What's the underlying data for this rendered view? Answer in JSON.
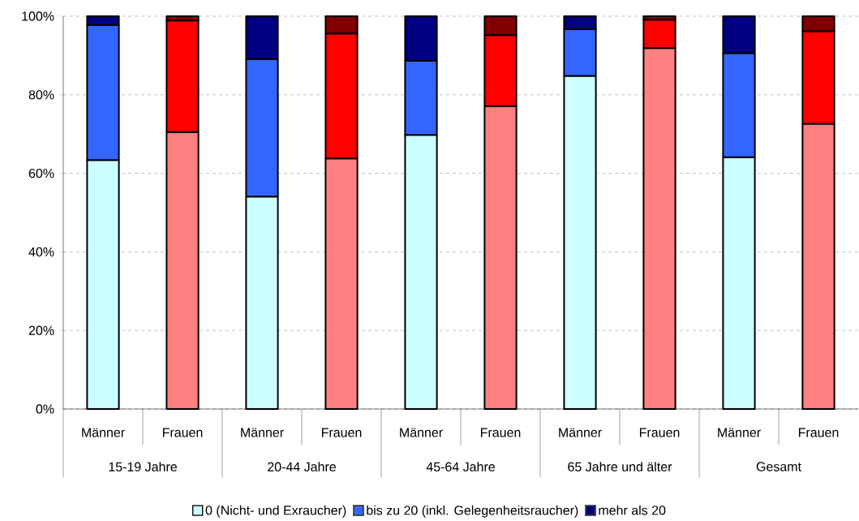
{
  "chart_data": {
    "type": "bar",
    "stacked": true,
    "categories": [
      "Männer",
      "Frauen",
      "Männer",
      "Frauen",
      "Männer",
      "Frauen",
      "Männer",
      "Frauen",
      "Männer",
      "Frauen"
    ],
    "annotations": [
      "15-19 Jahre",
      "20-44 Jahre",
      "45-64 Jahre",
      "65 Jahre und älter",
      "Gesamt"
    ],
    "series": [
      {
        "name": "0 (Nicht- und Exraucher)",
        "color": "#ccffff",
        "colors": [
          "#ccffff",
          "#ff8080",
          "#ccffff",
          "#ff8080",
          "#ccffff",
          "#ff8080",
          "#ccffff",
          "#ff8080",
          "#ccffff",
          "#ff8080"
        ],
        "values": [
          63.4,
          70.5,
          54.1,
          63.8,
          69.8,
          77.1,
          84.8,
          91.9,
          64.1,
          72.6
        ]
      },
      {
        "name": "bis zu 20 (inkl. Gelegenheitsraucher)",
        "color": "#3366ff",
        "colors": [
          "#3366ff",
          "#ff0000",
          "#3366ff",
          "#ff0000",
          "#3366ff",
          "#ff0000",
          "#3366ff",
          "#ff0000",
          "#3366ff",
          "#ff0000"
        ],
        "values": [
          34.4,
          28.4,
          35.0,
          31.8,
          18.9,
          18.1,
          11.9,
          7.2,
          26.5,
          23.6
        ]
      },
      {
        "name": "mehr als 20",
        "color": "#000080",
        "colors": [
          "#000080",
          "#800000",
          "#000080",
          "#800000",
          "#000080",
          "#800000",
          "#000080",
          "#800000",
          "#000080",
          "#800000"
        ],
        "values": [
          2.2,
          1.1,
          10.9,
          4.4,
          11.3,
          4.8,
          3.3,
          0.9,
          9.4,
          3.8
        ]
      }
    ],
    "ylim": [
      0,
      100
    ],
    "yticks": [
      {
        "value": 0,
        "label": "0%"
      },
      {
        "value": 20,
        "label": "20%"
      },
      {
        "value": 40,
        "label": "40%"
      },
      {
        "value": 60,
        "label": "60%"
      },
      {
        "value": 80,
        "label": "80%"
      },
      {
        "value": 100,
        "label": "100%"
      }
    ],
    "grid": "y",
    "legend": "bottom"
  }
}
